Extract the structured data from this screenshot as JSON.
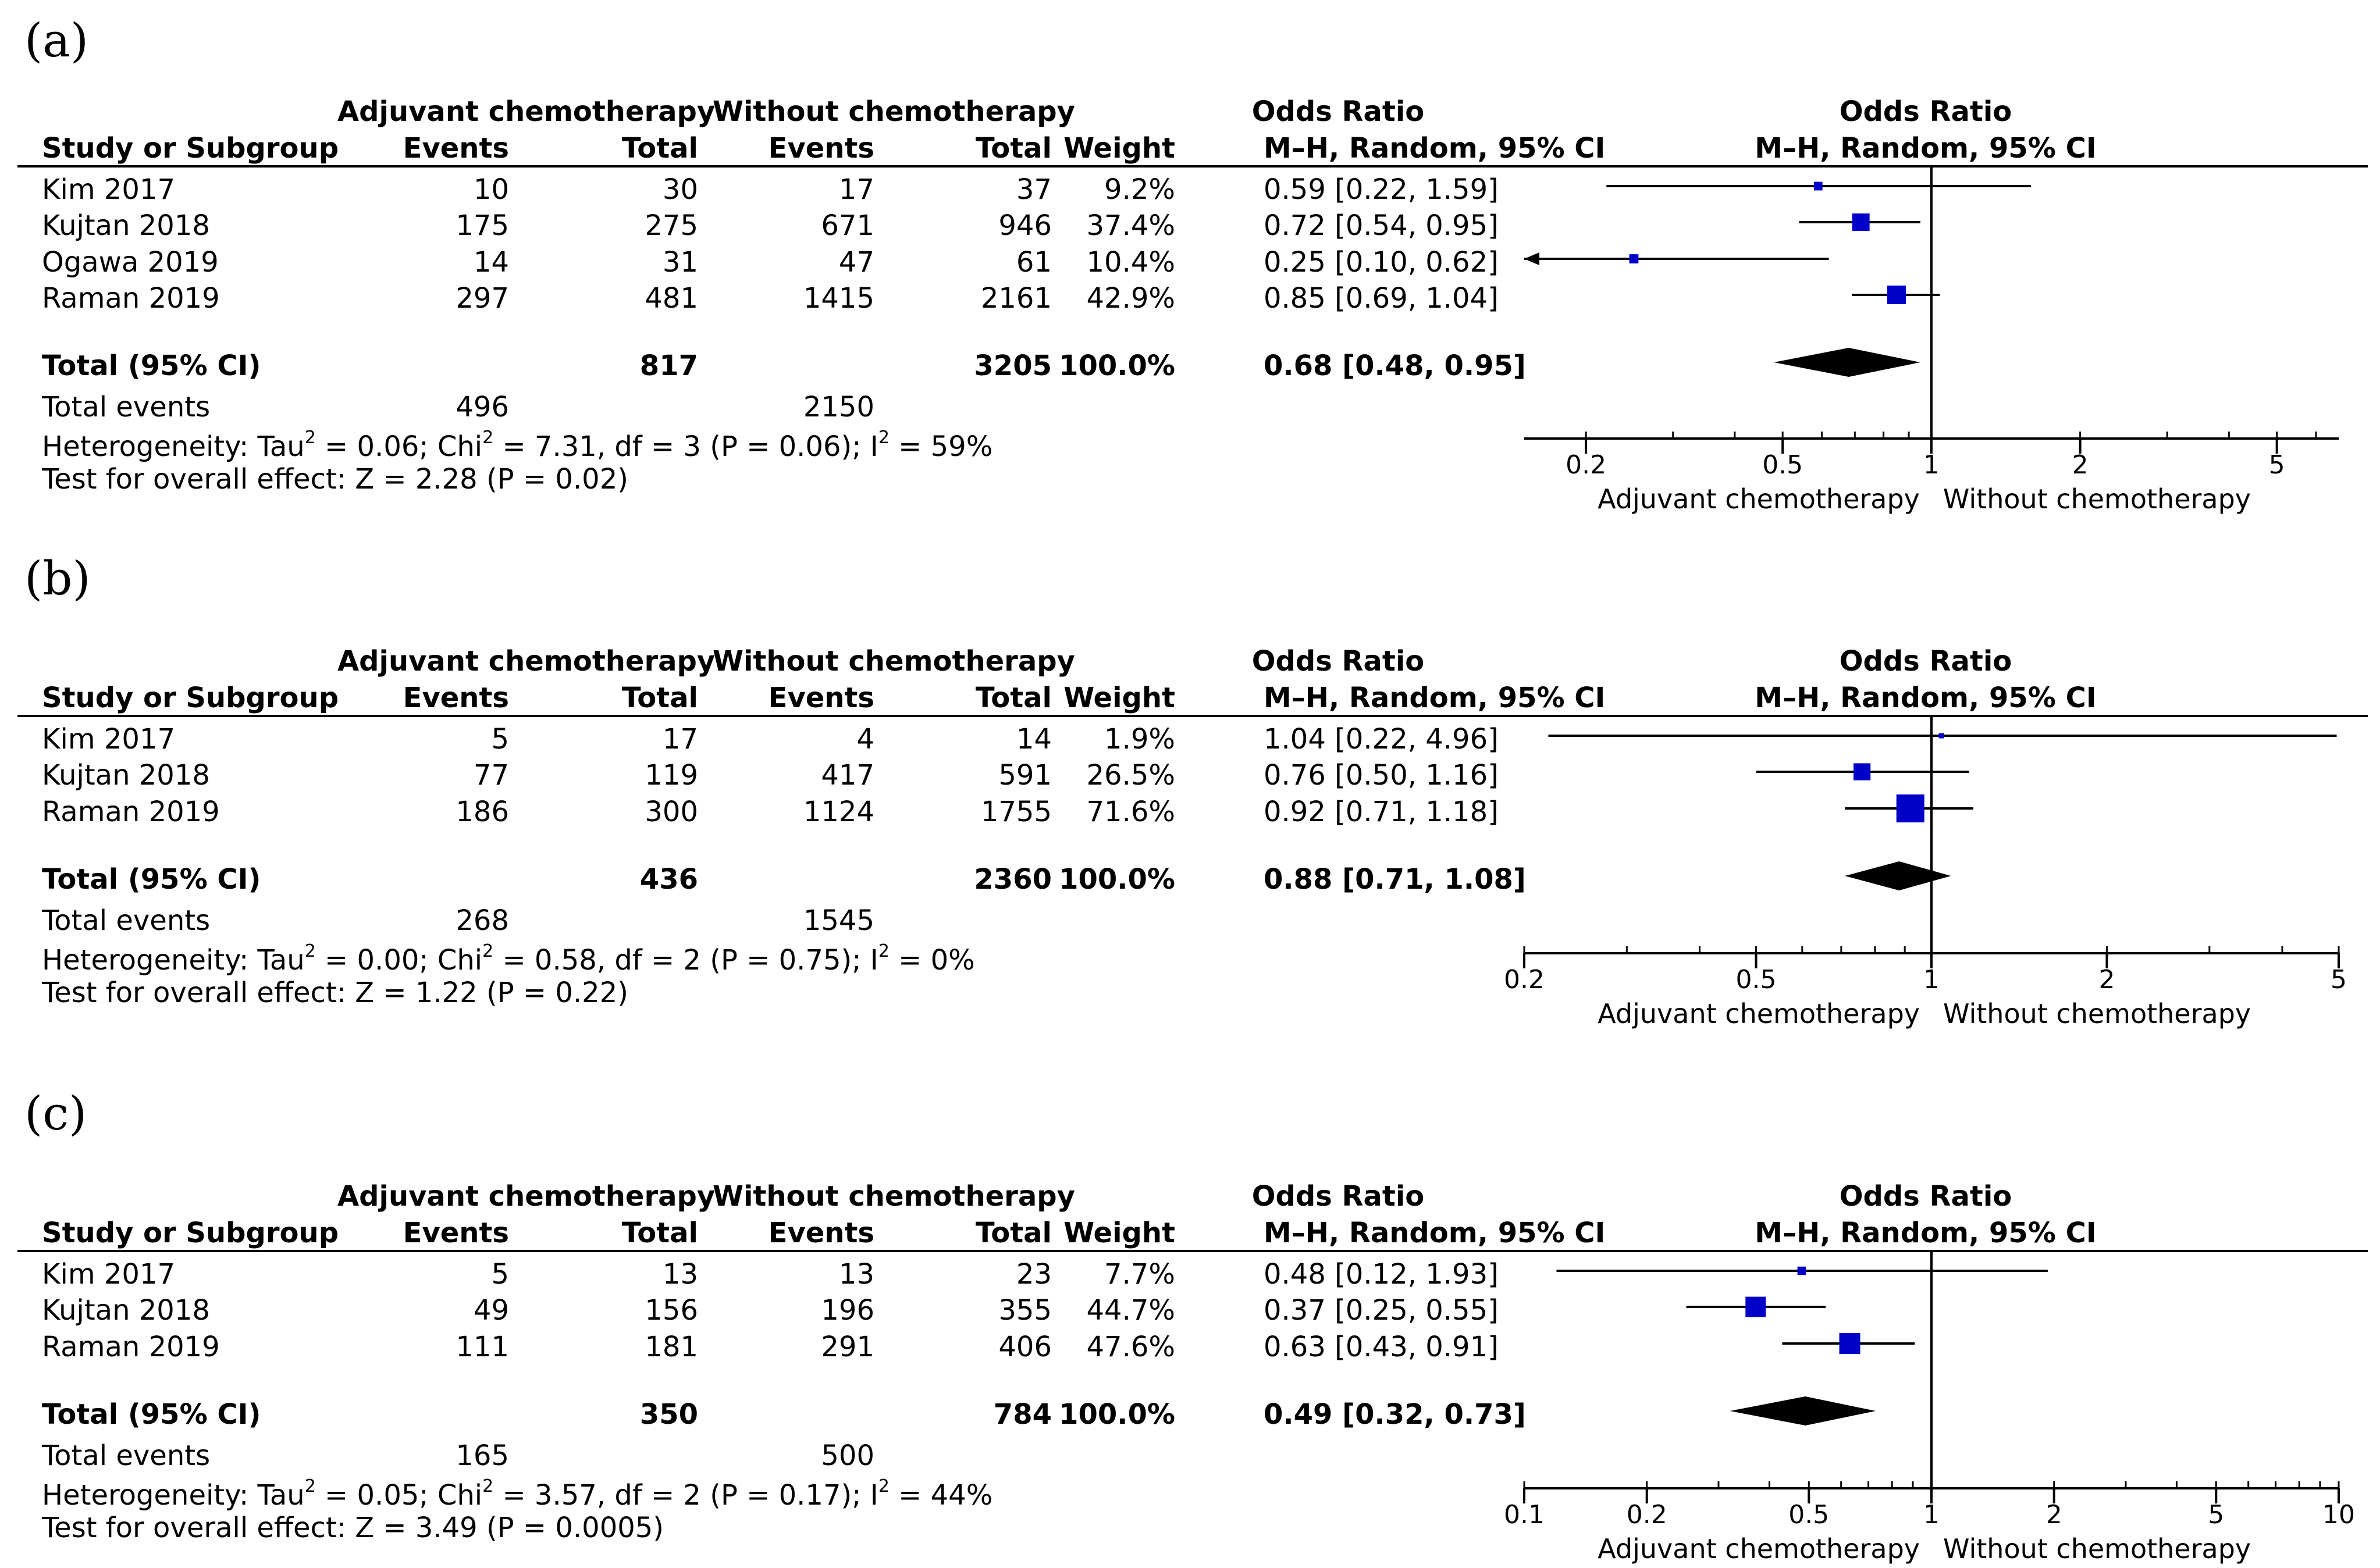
{
  "headers": {
    "group_exp": "Adjuvant chemotherapy",
    "group_ctl": "Without chemotherapy",
    "study": "Study or Subgroup",
    "events": "Events",
    "total": "Total",
    "weight": "Weight",
    "odds_ratio": "Odds Ratio",
    "method": "M–H, Random, 95% CI",
    "plot_title": "Odds Ratio",
    "plot_method": "M–H, Random, 95% CI",
    "favours_left": "Adjuvant chemotherapy",
    "favours_right": "Without chemotherapy"
  },
  "colors": {
    "square": "#0000c8",
    "diamond": "#000000",
    "line": "#000000"
  },
  "panels": [
    {
      "label": "(a)",
      "rows": [
        {
          "study": "Kim 2017",
          "e_events": "10",
          "e_total": "30",
          "c_events": "17",
          "c_total": "37",
          "weight": "9.2%",
          "ci": "0.59 [0.22, 1.59]"
        },
        {
          "study": "Kujtan 2018",
          "e_events": "175",
          "e_total": "275",
          "c_events": "671",
          "c_total": "946",
          "weight": "37.4%",
          "ci": "0.72 [0.54, 0.95]"
        },
        {
          "study": "Ogawa 2019",
          "e_events": "14",
          "e_total": "31",
          "c_events": "47",
          "c_total": "61",
          "weight": "10.4%",
          "ci": "0.25 [0.10, 0.62]"
        },
        {
          "study": "Raman 2019",
          "e_events": "297",
          "e_total": "481",
          "c_events": "1415",
          "c_total": "2161",
          "weight": "42.9%",
          "ci": "0.85 [0.69, 1.04]"
        }
      ],
      "total": {
        "label": "Total (95% CI)",
        "e_total": "817",
        "c_total": "3205",
        "weight": "100.0%",
        "ci": "0.68 [0.48, 0.95]"
      },
      "events": {
        "label": "Total events",
        "e": "496",
        "c": "2150"
      },
      "heterogeneity": {
        "tau_pre": "Heterogeneity: Tau",
        "tau_val": " = 0.06; Chi",
        "chi_val": " = 7.31, df = 3 (P = 0.06); I",
        "i2_val": " = 59%"
      },
      "overall": "Test for overall effect: Z = 2.28 (P = 0.02)"
    },
    {
      "label": "(b)",
      "rows": [
        {
          "study": "Kim 2017",
          "e_events": "5",
          "e_total": "17",
          "c_events": "4",
          "c_total": "14",
          "weight": "1.9%",
          "ci": "1.04 [0.22, 4.96]"
        },
        {
          "study": "Kujtan 2018",
          "e_events": "77",
          "e_total": "119",
          "c_events": "417",
          "c_total": "591",
          "weight": "26.5%",
          "ci": "0.76 [0.50, 1.16]"
        },
        {
          "study": "Raman 2019",
          "e_events": "186",
          "e_total": "300",
          "c_events": "1124",
          "c_total": "1755",
          "weight": "71.6%",
          "ci": "0.92 [0.71, 1.18]"
        }
      ],
      "total": {
        "label": "Total (95% CI)",
        "e_total": "436",
        "c_total": "2360",
        "weight": "100.0%",
        "ci": "0.88 [0.71, 1.08]"
      },
      "events": {
        "label": "Total events",
        "e": "268",
        "c": "1545"
      },
      "heterogeneity": {
        "tau_pre": "Heterogeneity: Tau",
        "tau_val": " = 0.00; Chi",
        "chi_val": " = 0.58, df = 2 (P = 0.75); I",
        "i2_val": " = 0%"
      },
      "overall": "Test for overall effect: Z = 1.22 (P = 0.22)"
    },
    {
      "label": "(c)",
      "rows": [
        {
          "study": "Kim 2017",
          "e_events": "5",
          "e_total": "13",
          "c_events": "13",
          "c_total": "23",
          "weight": "7.7%",
          "ci": "0.48 [0.12, 1.93]"
        },
        {
          "study": "Kujtan 2018",
          "e_events": "49",
          "e_total": "156",
          "c_events": "196",
          "c_total": "355",
          "weight": "44.7%",
          "ci": "0.37 [0.25, 0.55]"
        },
        {
          "study": "Raman 2019",
          "e_events": "111",
          "e_total": "181",
          "c_events": "291",
          "c_total": "406",
          "weight": "47.6%",
          "ci": "0.63 [0.43, 0.91]"
        }
      ],
      "total": {
        "label": "Total (95% CI)",
        "e_total": "350",
        "c_total": "784",
        "weight": "100.0%",
        "ci": "0.49 [0.32, 0.73]"
      },
      "events": {
        "label": "Total events",
        "e": "165",
        "c": "500"
      },
      "heterogeneity": {
        "tau_pre": "Heterogeneity: Tau",
        "tau_val": " = 0.05; Chi",
        "chi_val": " = 3.57, df = 2 (P = 0.17); I",
        "i2_val": " = 44%"
      },
      "overall": "Test for overall effect: Z = 3.49 (P = 0.0005)"
    }
  ],
  "chart_data": [
    {
      "type": "forest",
      "title": "(a)",
      "scale": "log",
      "xlim": [
        0.15,
        6.67
      ],
      "ticks": [
        0.2,
        0.5,
        1,
        2,
        5
      ],
      "tick_labels": [
        "0.2",
        "0.5",
        "1",
        "2",
        "5"
      ],
      "xlabel_left": "Adjuvant chemotherapy",
      "xlabel_right": "Without chemotherapy",
      "studies": [
        {
          "name": "Kim 2017",
          "or": 0.59,
          "lo": 0.22,
          "hi": 1.59,
          "weight": 9.2
        },
        {
          "name": "Kujtan 2018",
          "or": 0.72,
          "lo": 0.54,
          "hi": 0.95,
          "weight": 37.4
        },
        {
          "name": "Ogawa 2019",
          "or": 0.25,
          "lo": 0.1,
          "hi": 0.62,
          "weight": 10.4
        },
        {
          "name": "Raman 2019",
          "or": 0.85,
          "lo": 0.69,
          "hi": 1.04,
          "weight": 42.9
        }
      ],
      "pooled": {
        "or": 0.68,
        "lo": 0.48,
        "hi": 0.95
      }
    },
    {
      "type": "forest",
      "title": "(b)",
      "scale": "log",
      "xlim": [
        0.2,
        5
      ],
      "ticks": [
        0.2,
        0.5,
        1,
        2,
        5
      ],
      "tick_labels": [
        "0.2",
        "0.5",
        "1",
        "2",
        "5"
      ],
      "xlabel_left": "Adjuvant chemotherapy",
      "xlabel_right": "Without chemotherapy",
      "studies": [
        {
          "name": "Kim 2017",
          "or": 1.04,
          "lo": 0.22,
          "hi": 4.96,
          "weight": 1.9
        },
        {
          "name": "Kujtan 2018",
          "or": 0.76,
          "lo": 0.5,
          "hi": 1.16,
          "weight": 26.5
        },
        {
          "name": "Raman 2019",
          "or": 0.92,
          "lo": 0.71,
          "hi": 1.18,
          "weight": 71.6
        }
      ],
      "pooled": {
        "or": 0.88,
        "lo": 0.71,
        "hi": 1.08
      }
    },
    {
      "type": "forest",
      "title": "(c)",
      "scale": "log",
      "xlim": [
        0.1,
        10
      ],
      "ticks": [
        0.1,
        0.2,
        0.5,
        1,
        2,
        5,
        10
      ],
      "tick_labels": [
        "0.1",
        "0.2",
        "0.5",
        "1",
        "2",
        "5",
        "10"
      ],
      "xlabel_left": "Adjuvant chemotherapy",
      "xlabel_right": "Without chemotherapy",
      "studies": [
        {
          "name": "Kim 2017",
          "or": 0.48,
          "lo": 0.12,
          "hi": 1.93,
          "weight": 7.7
        },
        {
          "name": "Kujtan 2018",
          "or": 0.37,
          "lo": 0.25,
          "hi": 0.55,
          "weight": 44.7
        },
        {
          "name": "Raman 2019",
          "or": 0.63,
          "lo": 0.43,
          "hi": 0.91,
          "weight": 47.6
        }
      ],
      "pooled": {
        "or": 0.49,
        "lo": 0.32,
        "hi": 0.73
      }
    }
  ]
}
